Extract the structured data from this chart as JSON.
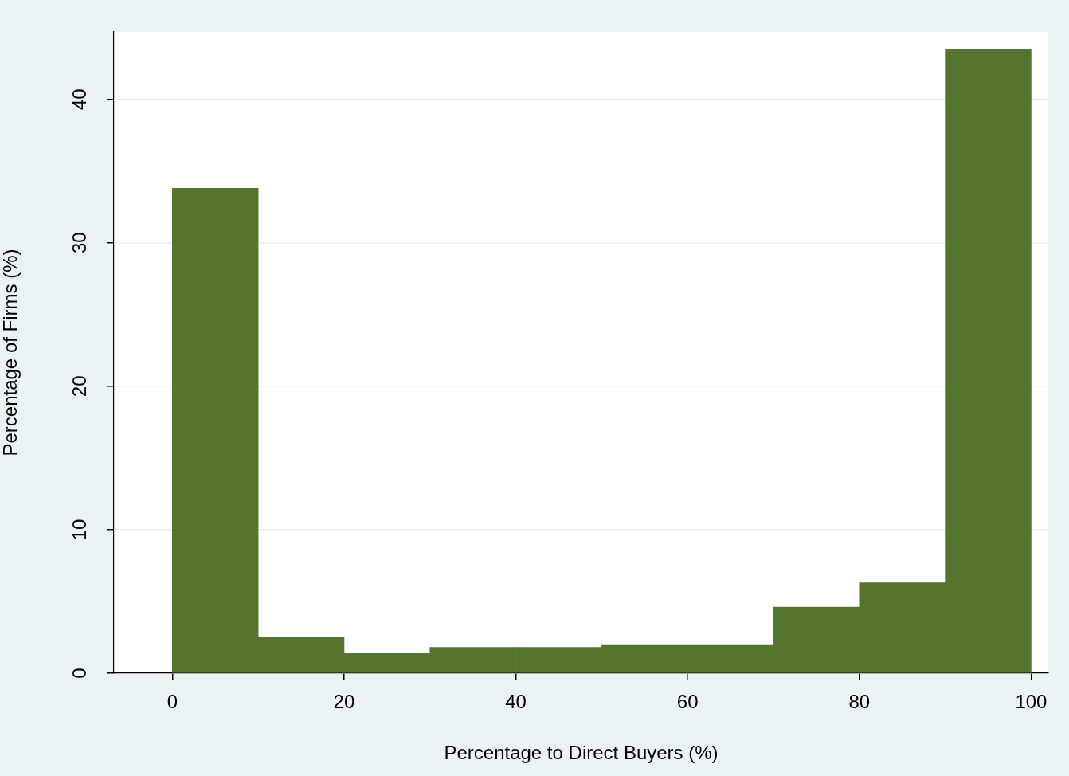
{
  "chart_data": {
    "type": "histogram",
    "xlabel": "Percentage to Direct Buyers (%)",
    "ylabel": "Percentage of Firms (%)",
    "bins": [
      0,
      10,
      20,
      30,
      40,
      50,
      60,
      70,
      80,
      90,
      100
    ],
    "values": [
      33.8,
      2.5,
      1.4,
      1.8,
      1.8,
      2.0,
      2.0,
      4.6,
      6.3,
      43.5
    ],
    "color": "#55752f",
    "xlim": [
      -6.8,
      102
    ],
    "xticks": [
      0,
      20,
      40,
      60,
      80,
      100
    ],
    "ylim": [
      0,
      44.7
    ],
    "yticks": [
      0,
      10,
      20,
      30,
      40
    ],
    "grid": "y"
  }
}
